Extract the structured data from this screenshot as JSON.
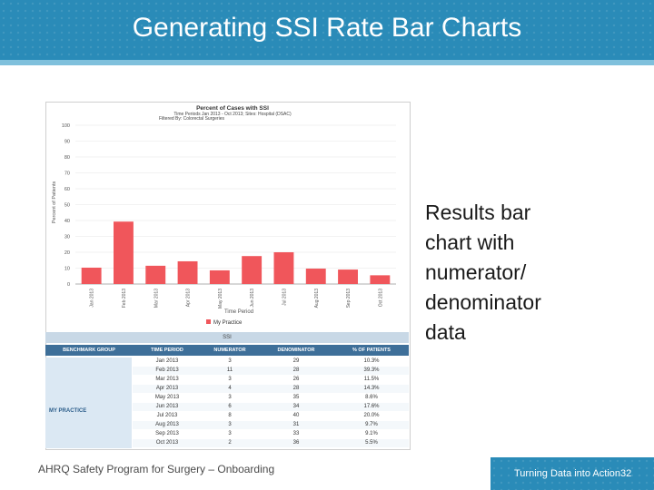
{
  "slide": {
    "title": "Generating SSI Rate Bar Charts",
    "side_text": "Results bar\nchart with\nnumerator/\ndenominator\ndata",
    "footer_left": "AHRQ Safety Program for Surgery – Onboarding",
    "footer_right": "Turning Data into Action",
    "page_number": "32"
  },
  "colors": {
    "header": "#2a8bb8",
    "bar": "#f0565b",
    "table_header": "#3e6f99"
  },
  "chart_data": {
    "type": "bar",
    "title": "Percent of Cases with SSI",
    "subtitle_lines": [
      "Time Periods Jan 2013 - Oct 2013; Sites: Hospital (DSAC)",
      "Filtered By: Colorectal Surgeries"
    ],
    "xlabel": "Time Period",
    "ylabel": "Percent of Patients",
    "ylim": [
      0,
      100
    ],
    "yticks": [
      0,
      10,
      20,
      30,
      40,
      50,
      60,
      70,
      80,
      90,
      100
    ],
    "categories": [
      "Jan 2013",
      "Feb 2013",
      "Mar 2013",
      "Apr 2013",
      "May 2013",
      "Jun 2013",
      "Jul 2013",
      "Aug 2013",
      "Sep 2013",
      "Oct 2013"
    ],
    "series": [
      {
        "name": "My Practice",
        "values": [
          10.3,
          39.3,
          11.5,
          14.3,
          8.6,
          17.6,
          20.0,
          9.7,
          9.1,
          5.5
        ]
      }
    ],
    "legend": "bottom-center"
  },
  "table": {
    "caption": "SSI",
    "headers": [
      "BENCHMARK GROUP",
      "TIME PERIOD",
      "NUMERATOR",
      "DENOMINATOR",
      "% OF PATIENTS"
    ],
    "group_label": "MY PRACTICE",
    "rows": [
      [
        "Jan 2013",
        "3",
        "29",
        "10.3%"
      ],
      [
        "Feb 2013",
        "11",
        "28",
        "39.3%"
      ],
      [
        "Mar 2013",
        "3",
        "26",
        "11.5%"
      ],
      [
        "Apr 2013",
        "4",
        "28",
        "14.3%"
      ],
      [
        "May 2013",
        "3",
        "35",
        "8.6%"
      ],
      [
        "Jun 2013",
        "6",
        "34",
        "17.6%"
      ],
      [
        "Jul 2013",
        "8",
        "40",
        "20.0%"
      ],
      [
        "Aug 2013",
        "3",
        "31",
        "9.7%"
      ],
      [
        "Sep 2013",
        "3",
        "33",
        "9.1%"
      ],
      [
        "Oct 2013",
        "2",
        "36",
        "5.5%"
      ]
    ]
  }
}
